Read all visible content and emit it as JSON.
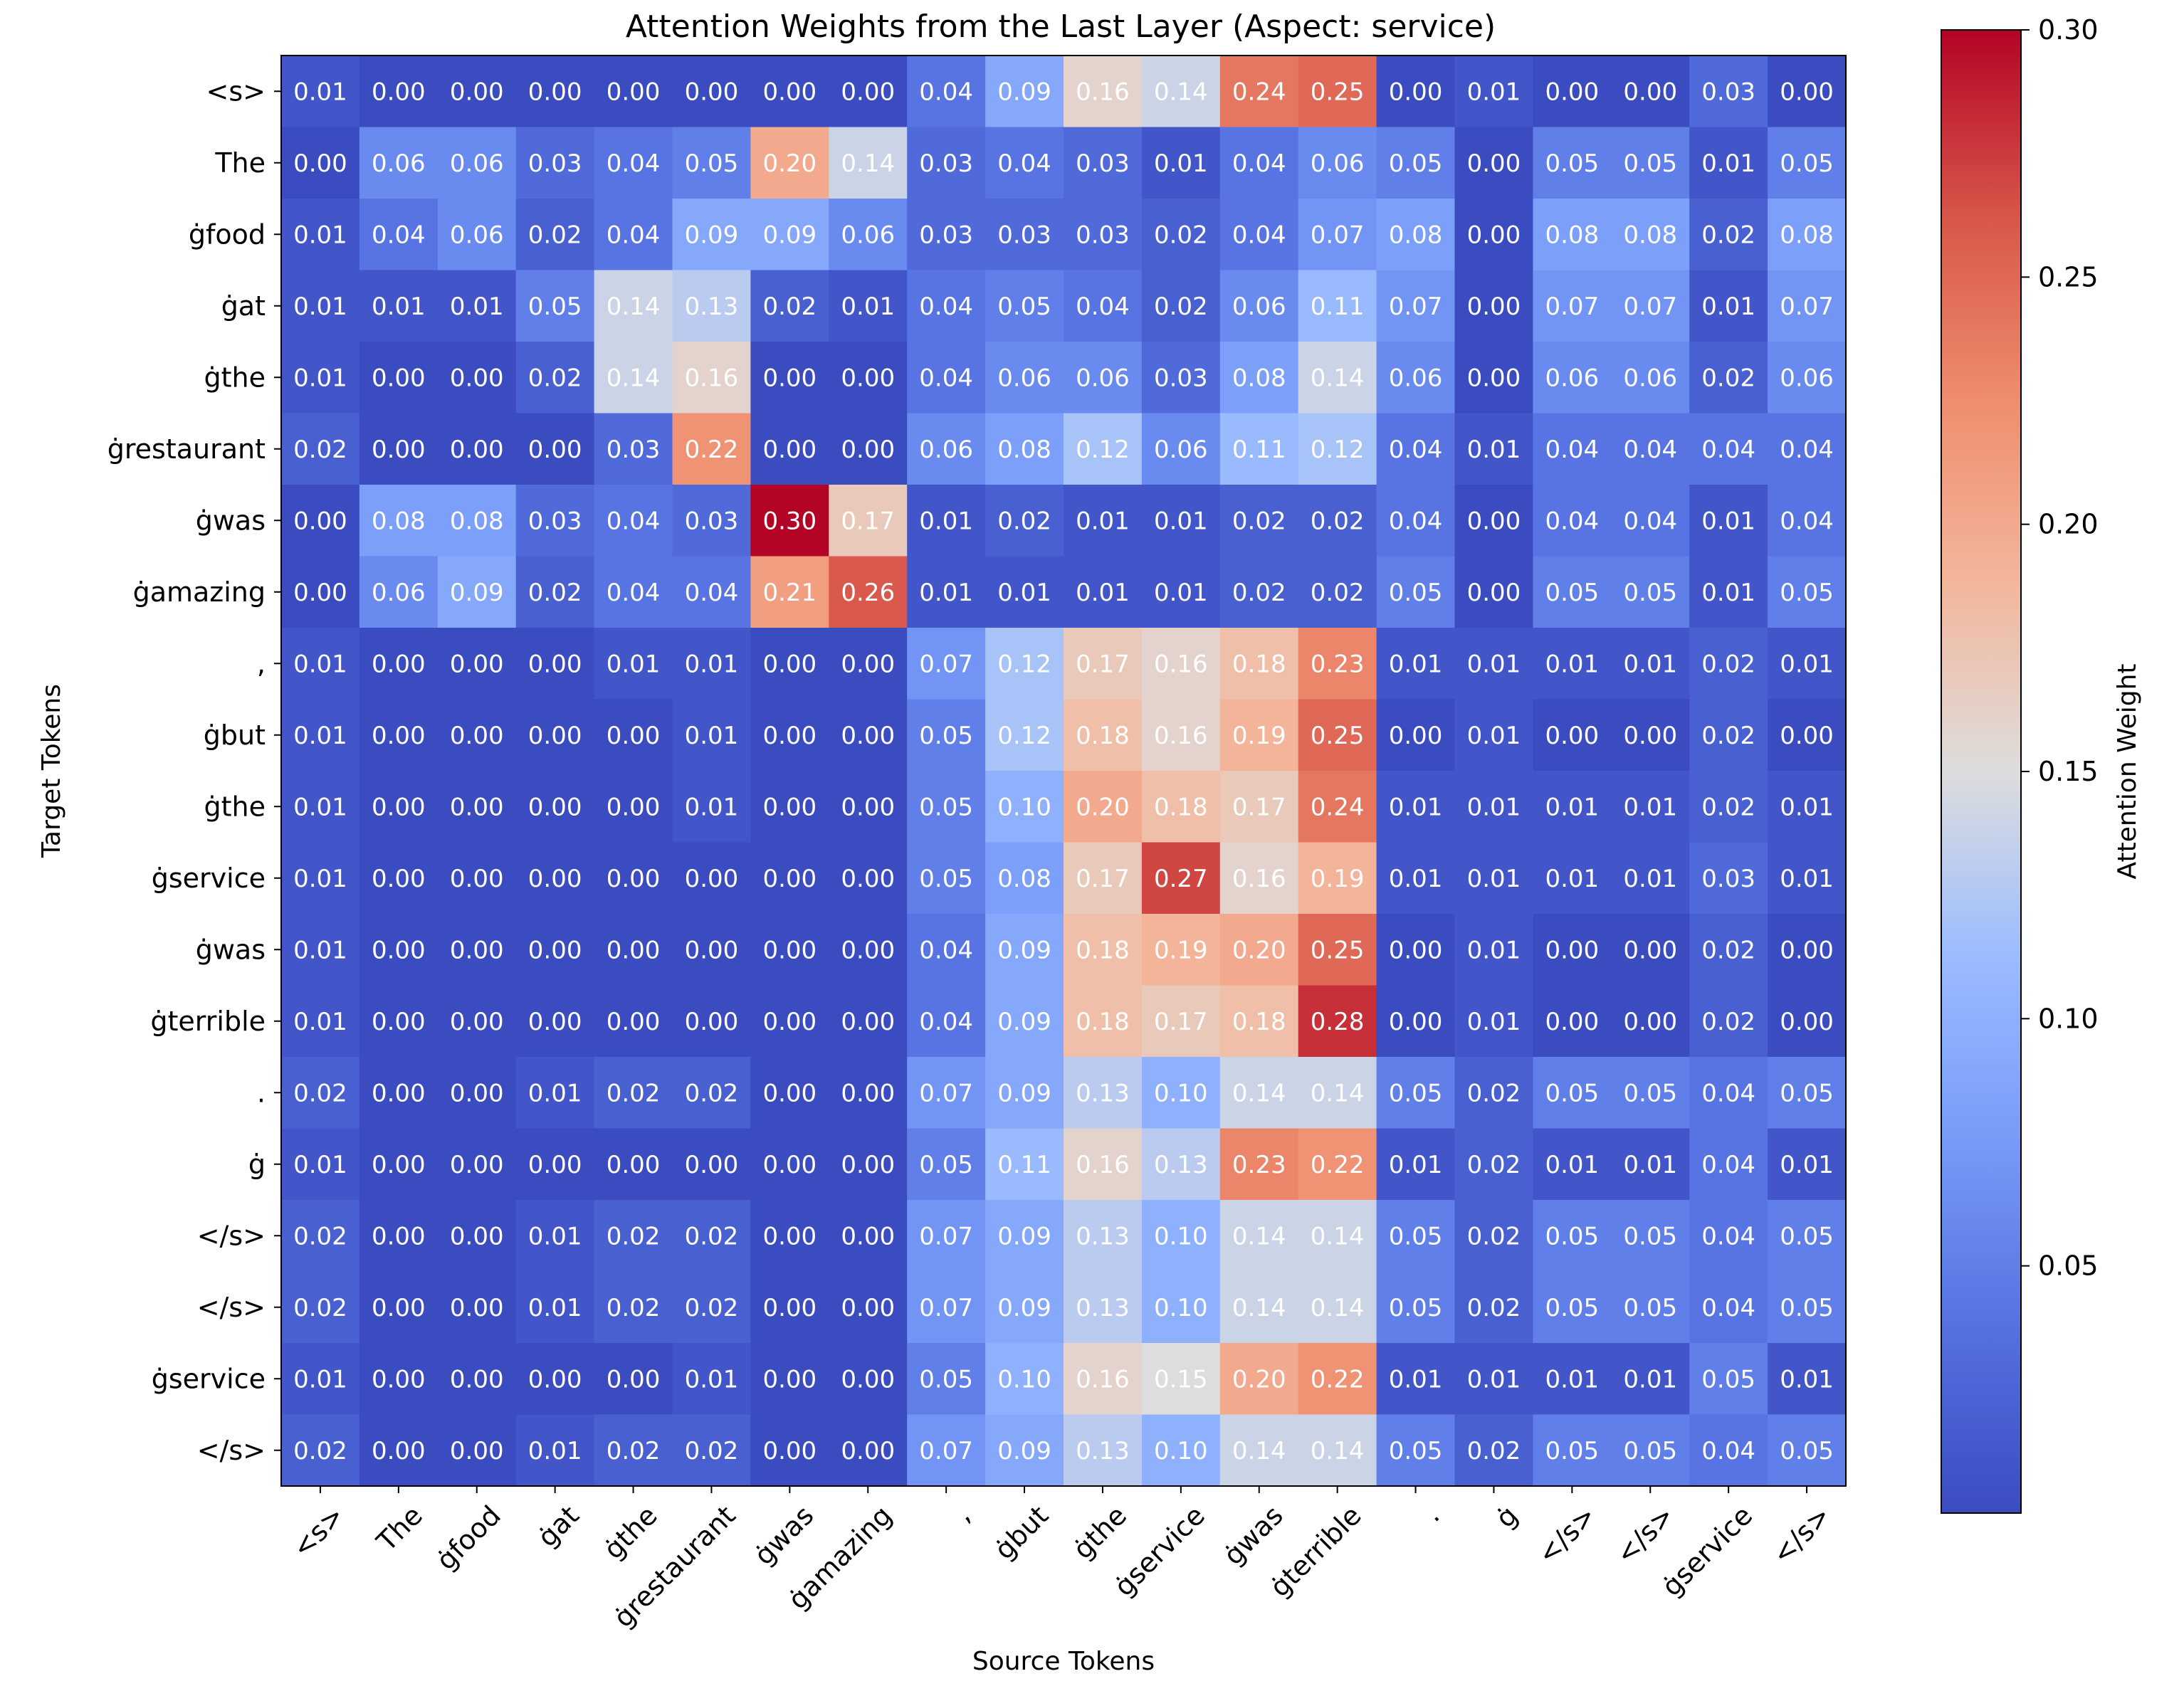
{
  "chart_data": {
    "type": "heatmap",
    "title": "Attention Weights from the Last Layer (Aspect: service)",
    "xlabel": "Source Tokens",
    "ylabel": "Target Tokens",
    "colorbar_label": "Attention Weight",
    "colormap": "coolwarm",
    "vmin": 0.0,
    "vmax": 0.3,
    "colorbar_ticks": [
      "0.05",
      "0.10",
      "0.15",
      "0.20",
      "0.25",
      "0.30"
    ],
    "x_labels": [
      "<s>",
      "The",
      "ġfood",
      "ġat",
      "ġthe",
      "ġrestaurant",
      "ġwas",
      "ġamazing",
      ",",
      "ġbut",
      "ġthe",
      "ġservice",
      "ġwas",
      "ġterrible",
      ".",
      "ġ",
      "</s>",
      "</s>",
      "ġservice",
      "</s>"
    ],
    "y_labels": [
      "<s>",
      "The",
      "ġfood",
      "ġat",
      "ġthe",
      "ġrestaurant",
      "ġwas",
      "ġamazing",
      ",",
      "ġbut",
      "ġthe",
      "ġservice",
      "ġwas",
      "ġterrible",
      ".",
      "ġ",
      "</s>",
      "</s>",
      "ġservice",
      "</s>"
    ],
    "values": [
      [
        "0.01",
        "0.00",
        "0.00",
        "0.00",
        "0.00",
        "0.00",
        "0.00",
        "0.00",
        "0.04",
        "0.09",
        "0.16",
        "0.14",
        "0.24",
        "0.25",
        "0.00",
        "0.01",
        "0.00",
        "0.00",
        "0.03",
        "0.00"
      ],
      [
        "0.00",
        "0.06",
        "0.06",
        "0.03",
        "0.04",
        "0.05",
        "0.20",
        "0.14",
        "0.03",
        "0.04",
        "0.03",
        "0.01",
        "0.04",
        "0.06",
        "0.05",
        "0.00",
        "0.05",
        "0.05",
        "0.01",
        "0.05"
      ],
      [
        "0.01",
        "0.04",
        "0.06",
        "0.02",
        "0.04",
        "0.09",
        "0.09",
        "0.06",
        "0.03",
        "0.03",
        "0.03",
        "0.02",
        "0.04",
        "0.07",
        "0.08",
        "0.00",
        "0.08",
        "0.08",
        "0.02",
        "0.08"
      ],
      [
        "0.01",
        "0.01",
        "0.01",
        "0.05",
        "0.14",
        "0.13",
        "0.02",
        "0.01",
        "0.04",
        "0.05",
        "0.04",
        "0.02",
        "0.06",
        "0.11",
        "0.07",
        "0.00",
        "0.07",
        "0.07",
        "0.01",
        "0.07"
      ],
      [
        "0.01",
        "0.00",
        "0.00",
        "0.02",
        "0.14",
        "0.16",
        "0.00",
        "0.00",
        "0.04",
        "0.06",
        "0.06",
        "0.03",
        "0.08",
        "0.14",
        "0.06",
        "0.00",
        "0.06",
        "0.06",
        "0.02",
        "0.06"
      ],
      [
        "0.02",
        "0.00",
        "0.00",
        "0.00",
        "0.03",
        "0.22",
        "0.00",
        "0.00",
        "0.06",
        "0.08",
        "0.12",
        "0.06",
        "0.11",
        "0.12",
        "0.04",
        "0.01",
        "0.04",
        "0.04",
        "0.04",
        "0.04"
      ],
      [
        "0.00",
        "0.08",
        "0.08",
        "0.03",
        "0.04",
        "0.03",
        "0.30",
        "0.17",
        "0.01",
        "0.02",
        "0.01",
        "0.01",
        "0.02",
        "0.02",
        "0.04",
        "0.00",
        "0.04",
        "0.04",
        "0.01",
        "0.04"
      ],
      [
        "0.00",
        "0.06",
        "0.09",
        "0.02",
        "0.04",
        "0.04",
        "0.21",
        "0.26",
        "0.01",
        "0.01",
        "0.01",
        "0.01",
        "0.02",
        "0.02",
        "0.05",
        "0.00",
        "0.05",
        "0.05",
        "0.01",
        "0.05"
      ],
      [
        "0.01",
        "0.00",
        "0.00",
        "0.00",
        "0.01",
        "0.01",
        "0.00",
        "0.00",
        "0.07",
        "0.12",
        "0.17",
        "0.16",
        "0.18",
        "0.23",
        "0.01",
        "0.01",
        "0.01",
        "0.01",
        "0.02",
        "0.01"
      ],
      [
        "0.01",
        "0.00",
        "0.00",
        "0.00",
        "0.00",
        "0.01",
        "0.00",
        "0.00",
        "0.05",
        "0.12",
        "0.18",
        "0.16",
        "0.19",
        "0.25",
        "0.00",
        "0.01",
        "0.00",
        "0.00",
        "0.02",
        "0.00"
      ],
      [
        "0.01",
        "0.00",
        "0.00",
        "0.00",
        "0.00",
        "0.01",
        "0.00",
        "0.00",
        "0.05",
        "0.10",
        "0.20",
        "0.18",
        "0.17",
        "0.24",
        "0.01",
        "0.01",
        "0.01",
        "0.01",
        "0.02",
        "0.01"
      ],
      [
        "0.01",
        "0.00",
        "0.00",
        "0.00",
        "0.00",
        "0.00",
        "0.00",
        "0.00",
        "0.05",
        "0.08",
        "0.17",
        "0.27",
        "0.16",
        "0.19",
        "0.01",
        "0.01",
        "0.01",
        "0.01",
        "0.03",
        "0.01"
      ],
      [
        "0.01",
        "0.00",
        "0.00",
        "0.00",
        "0.00",
        "0.00",
        "0.00",
        "0.00",
        "0.04",
        "0.09",
        "0.18",
        "0.19",
        "0.20",
        "0.25",
        "0.00",
        "0.01",
        "0.00",
        "0.00",
        "0.02",
        "0.00"
      ],
      [
        "0.01",
        "0.00",
        "0.00",
        "0.00",
        "0.00",
        "0.00",
        "0.00",
        "0.00",
        "0.04",
        "0.09",
        "0.18",
        "0.17",
        "0.18",
        "0.28",
        "0.00",
        "0.01",
        "0.00",
        "0.00",
        "0.02",
        "0.00"
      ],
      [
        "0.02",
        "0.00",
        "0.00",
        "0.01",
        "0.02",
        "0.02",
        "0.00",
        "0.00",
        "0.07",
        "0.09",
        "0.13",
        "0.10",
        "0.14",
        "0.14",
        "0.05",
        "0.02",
        "0.05",
        "0.05",
        "0.04",
        "0.05"
      ],
      [
        "0.01",
        "0.00",
        "0.00",
        "0.00",
        "0.00",
        "0.00",
        "0.00",
        "0.00",
        "0.05",
        "0.11",
        "0.16",
        "0.13",
        "0.23",
        "0.22",
        "0.01",
        "0.02",
        "0.01",
        "0.01",
        "0.04",
        "0.01"
      ],
      [
        "0.02",
        "0.00",
        "0.00",
        "0.01",
        "0.02",
        "0.02",
        "0.00",
        "0.00",
        "0.07",
        "0.09",
        "0.13",
        "0.10",
        "0.14",
        "0.14",
        "0.05",
        "0.02",
        "0.05",
        "0.05",
        "0.04",
        "0.05"
      ],
      [
        "0.02",
        "0.00",
        "0.00",
        "0.01",
        "0.02",
        "0.02",
        "0.00",
        "0.00",
        "0.07",
        "0.09",
        "0.13",
        "0.10",
        "0.14",
        "0.14",
        "0.05",
        "0.02",
        "0.05",
        "0.05",
        "0.04",
        "0.05"
      ],
      [
        "0.01",
        "0.00",
        "0.00",
        "0.00",
        "0.00",
        "0.01",
        "0.00",
        "0.00",
        "0.05",
        "0.10",
        "0.16",
        "0.15",
        "0.20",
        "0.22",
        "0.01",
        "0.01",
        "0.01",
        "0.01",
        "0.05",
        "0.01"
      ],
      [
        "0.02",
        "0.00",
        "0.00",
        "0.01",
        "0.02",
        "0.02",
        "0.00",
        "0.00",
        "0.07",
        "0.09",
        "0.13",
        "0.10",
        "0.14",
        "0.14",
        "0.05",
        "0.02",
        "0.05",
        "0.05",
        "0.04",
        "0.05"
      ]
    ]
  }
}
